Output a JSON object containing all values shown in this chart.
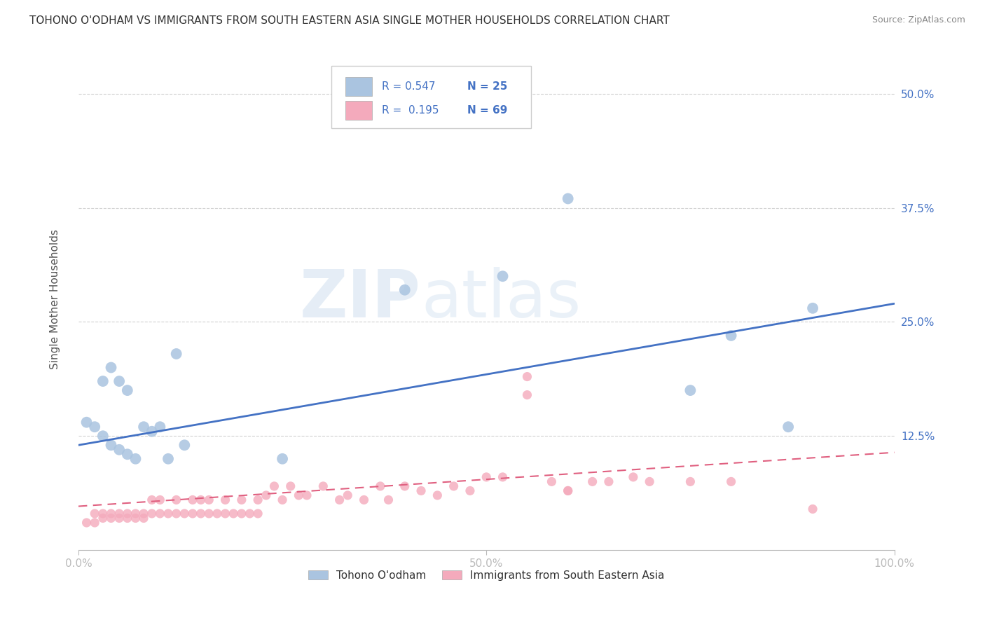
{
  "title": "TOHONO O'ODHAM VS IMMIGRANTS FROM SOUTH EASTERN ASIA SINGLE MOTHER HOUSEHOLDS CORRELATION CHART",
  "source": "Source: ZipAtlas.com",
  "ylabel": "Single Mother Households",
  "xlim": [
    0.0,
    1.0
  ],
  "ylim": [
    0.0,
    0.55
  ],
  "x_ticks": [
    0.0,
    0.5,
    1.0
  ],
  "x_tick_labels": [
    "0.0%",
    "50.0%",
    "100.0%"
  ],
  "y_ticks": [
    0.125,
    0.25,
    0.375,
    0.5
  ],
  "y_tick_labels": [
    "12.5%",
    "25.0%",
    "37.5%",
    "50.0%"
  ],
  "watermark_zip": "ZIP",
  "watermark_atlas": "atlas",
  "legend_series": [
    {
      "label": "Tohono O'odham",
      "color": "#aac4e0",
      "R": 0.547,
      "N": 25
    },
    {
      "label": "Immigrants from South Eastern Asia",
      "color": "#f4aabc",
      "R": 0.195,
      "N": 69
    }
  ],
  "blue_scatter_x": [
    0.01,
    0.02,
    0.03,
    0.04,
    0.05,
    0.06,
    0.07,
    0.09,
    0.11,
    0.13,
    0.4,
    0.52,
    0.6,
    0.75,
    0.8,
    0.87,
    0.9,
    0.03,
    0.04,
    0.05,
    0.06,
    0.08,
    0.1,
    0.12,
    0.25
  ],
  "blue_scatter_y": [
    0.14,
    0.135,
    0.125,
    0.115,
    0.11,
    0.105,
    0.1,
    0.13,
    0.1,
    0.115,
    0.285,
    0.3,
    0.385,
    0.175,
    0.235,
    0.135,
    0.265,
    0.185,
    0.2,
    0.185,
    0.175,
    0.135,
    0.135,
    0.215,
    0.1
  ],
  "pink_scatter_x": [
    0.01,
    0.02,
    0.02,
    0.03,
    0.03,
    0.04,
    0.04,
    0.05,
    0.05,
    0.06,
    0.06,
    0.07,
    0.07,
    0.08,
    0.08,
    0.09,
    0.09,
    0.1,
    0.1,
    0.11,
    0.12,
    0.12,
    0.13,
    0.14,
    0.14,
    0.15,
    0.15,
    0.16,
    0.16,
    0.17,
    0.18,
    0.18,
    0.19,
    0.2,
    0.2,
    0.21,
    0.22,
    0.22,
    0.23,
    0.24,
    0.25,
    0.26,
    0.27,
    0.28,
    0.3,
    0.32,
    0.33,
    0.35,
    0.37,
    0.38,
    0.4,
    0.42,
    0.44,
    0.46,
    0.48,
    0.5,
    0.52,
    0.55,
    0.58,
    0.6,
    0.63,
    0.65,
    0.68,
    0.7,
    0.55,
    0.6,
    0.75,
    0.8,
    0.9
  ],
  "pink_scatter_y": [
    0.03,
    0.03,
    0.04,
    0.04,
    0.035,
    0.04,
    0.035,
    0.04,
    0.035,
    0.04,
    0.035,
    0.04,
    0.035,
    0.04,
    0.035,
    0.04,
    0.055,
    0.04,
    0.055,
    0.04,
    0.04,
    0.055,
    0.04,
    0.04,
    0.055,
    0.04,
    0.055,
    0.04,
    0.055,
    0.04,
    0.04,
    0.055,
    0.04,
    0.04,
    0.055,
    0.04,
    0.04,
    0.055,
    0.06,
    0.07,
    0.055,
    0.07,
    0.06,
    0.06,
    0.07,
    0.055,
    0.06,
    0.055,
    0.07,
    0.055,
    0.07,
    0.065,
    0.06,
    0.07,
    0.065,
    0.08,
    0.08,
    0.19,
    0.075,
    0.065,
    0.075,
    0.075,
    0.08,
    0.075,
    0.17,
    0.065,
    0.075,
    0.075,
    0.045
  ],
  "blue_line_x": [
    0.0,
    1.0
  ],
  "blue_line_y_start": 0.115,
  "blue_line_y_end": 0.27,
  "pink_line_x": [
    0.0,
    1.0
  ],
  "pink_line_y_start": 0.048,
  "pink_line_y_end": 0.107,
  "grid_color": "#cccccc",
  "scatter_blue_color": "#aac4e0",
  "scatter_pink_color": "#f4aabc",
  "line_blue_color": "#4472c4",
  "line_pink_color": "#e06080",
  "tick_label_color": "#4472c4",
  "background_color": "#ffffff",
  "title_fontsize": 11,
  "source_fontsize": 9,
  "legend_R_color": "#4472c4",
  "legend_N_color": "#4472c4"
}
